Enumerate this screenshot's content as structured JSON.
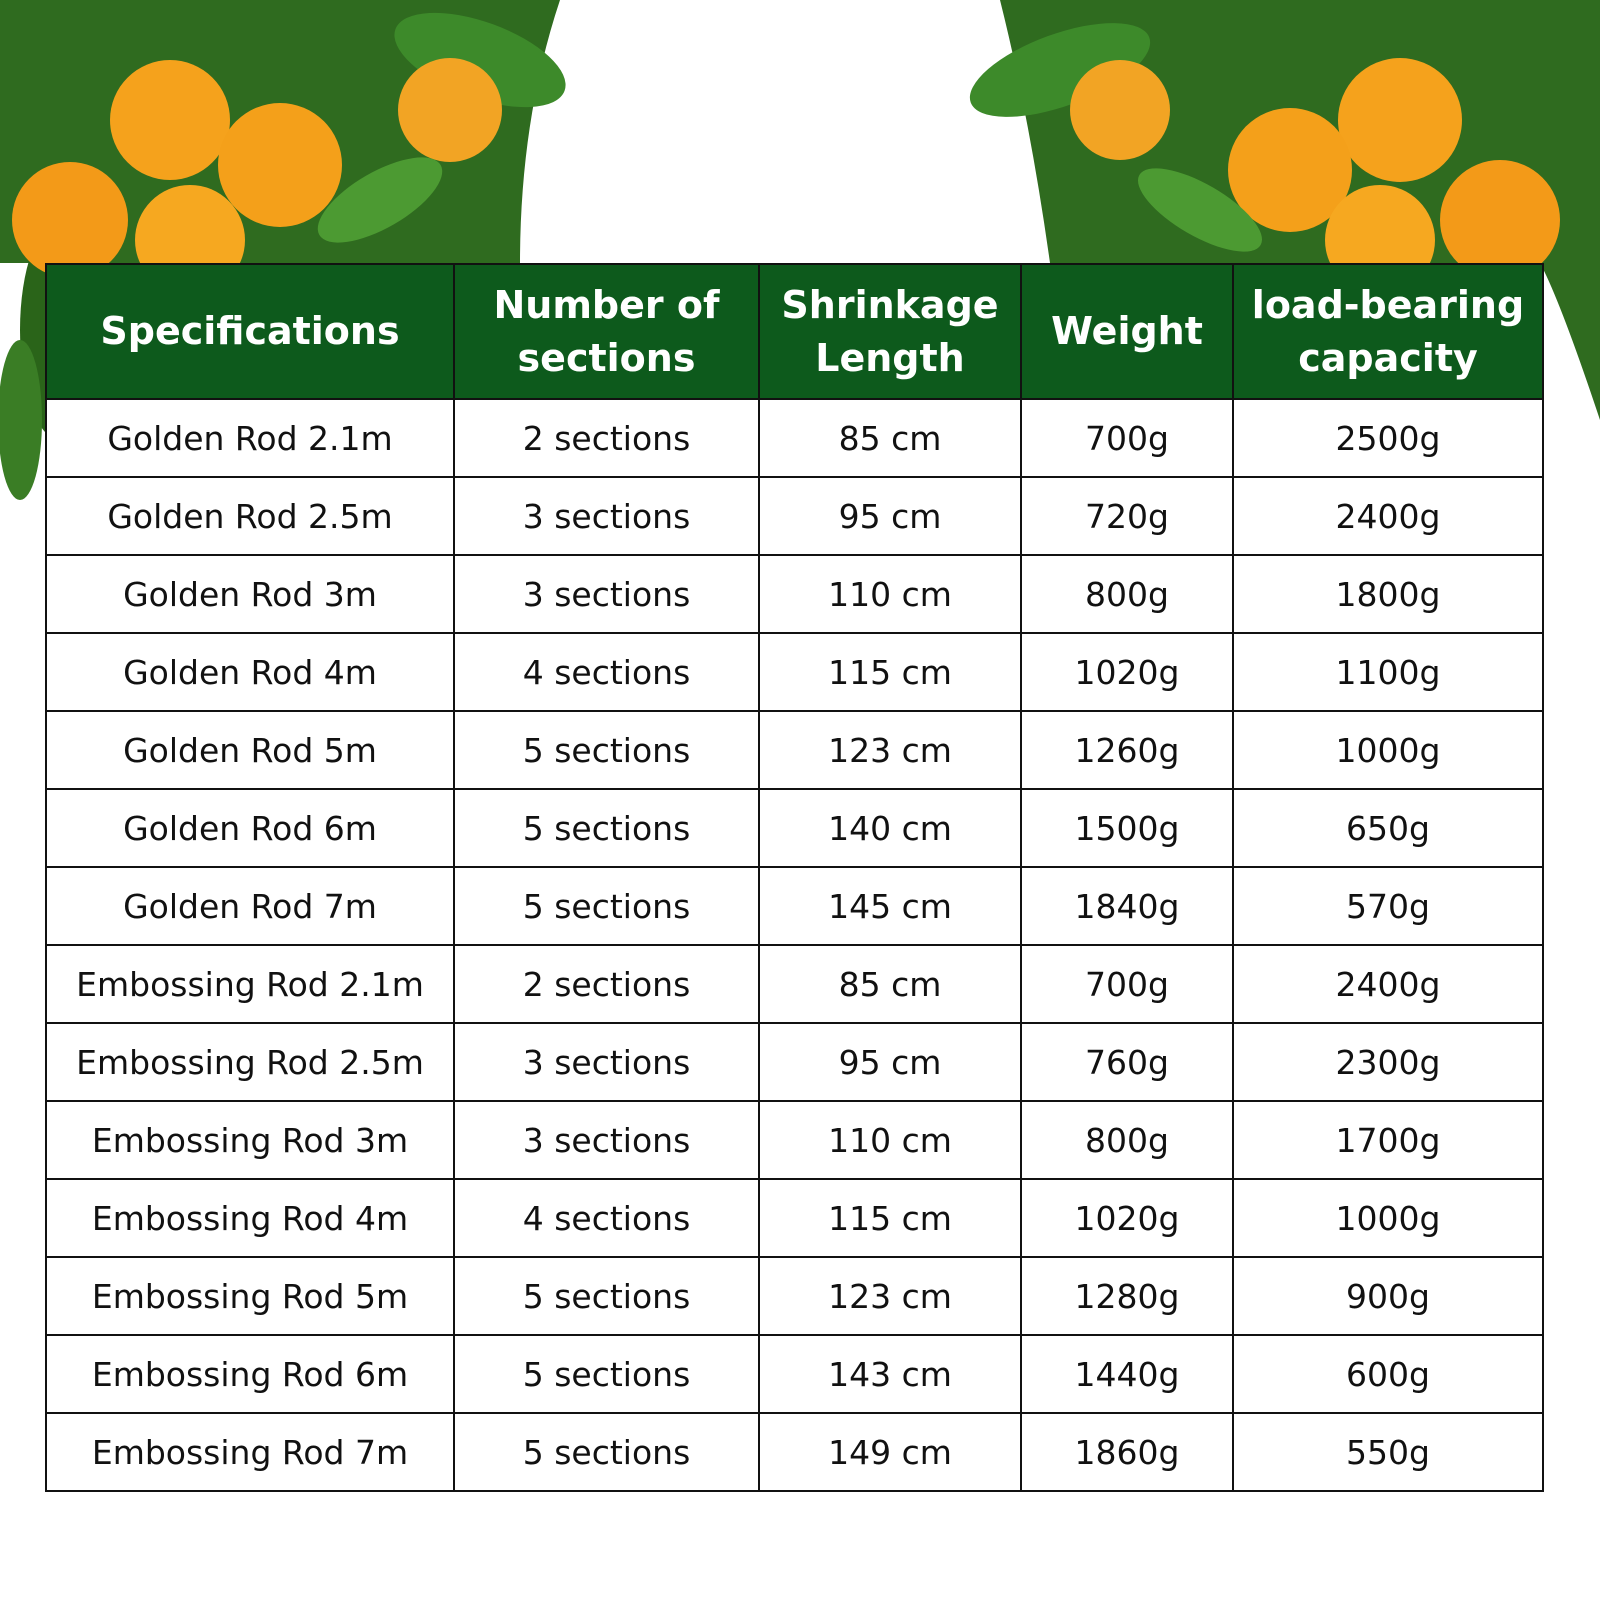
{
  "table": {
    "headers": [
      "Specifications",
      "Number of sections",
      "Shrinkage Length",
      "Weight",
      "load-bearing capacity"
    ],
    "rows": [
      [
        "Golden Rod 2.1m",
        "2 sections",
        "85 cm",
        "700g",
        "2500g"
      ],
      [
        "Golden Rod 2.5m",
        "3 sections",
        "95 cm",
        "720g",
        "2400g"
      ],
      [
        "Golden Rod 3m",
        "3 sections",
        "110 cm",
        "800g",
        "1800g"
      ],
      [
        "Golden Rod 4m",
        "4 sections",
        "115 cm",
        "1020g",
        "1100g"
      ],
      [
        "Golden Rod 5m",
        "5 sections",
        "123 cm",
        "1260g",
        "1000g"
      ],
      [
        "Golden Rod 6m",
        "5 sections",
        "140 cm",
        "1500g",
        "650g"
      ],
      [
        "Golden Rod 7m",
        "5 sections",
        "145 cm",
        "1840g",
        "570g"
      ],
      [
        "Embossing Rod 2.1m",
        "2 sections",
        "85 cm",
        "700g",
        "2400g"
      ],
      [
        "Embossing Rod 2.5m",
        "3 sections",
        "95 cm",
        "760g",
        "2300g"
      ],
      [
        "Embossing Rod 3m",
        "3 sections",
        "110 cm",
        "800g",
        "1700g"
      ],
      [
        "Embossing Rod 4m",
        "4 sections",
        "115 cm",
        "1020g",
        "1000g"
      ],
      [
        "Embossing Rod 5m",
        "5 sections",
        "123 cm",
        "1280g",
        "900g"
      ],
      [
        "Embossing Rod 6m",
        "5 sections",
        "143 cm",
        "1440g",
        "600g"
      ],
      [
        "Embossing Rod 7m",
        "5 sections",
        "149 cm",
        "1860g",
        "550g"
      ]
    ]
  }
}
